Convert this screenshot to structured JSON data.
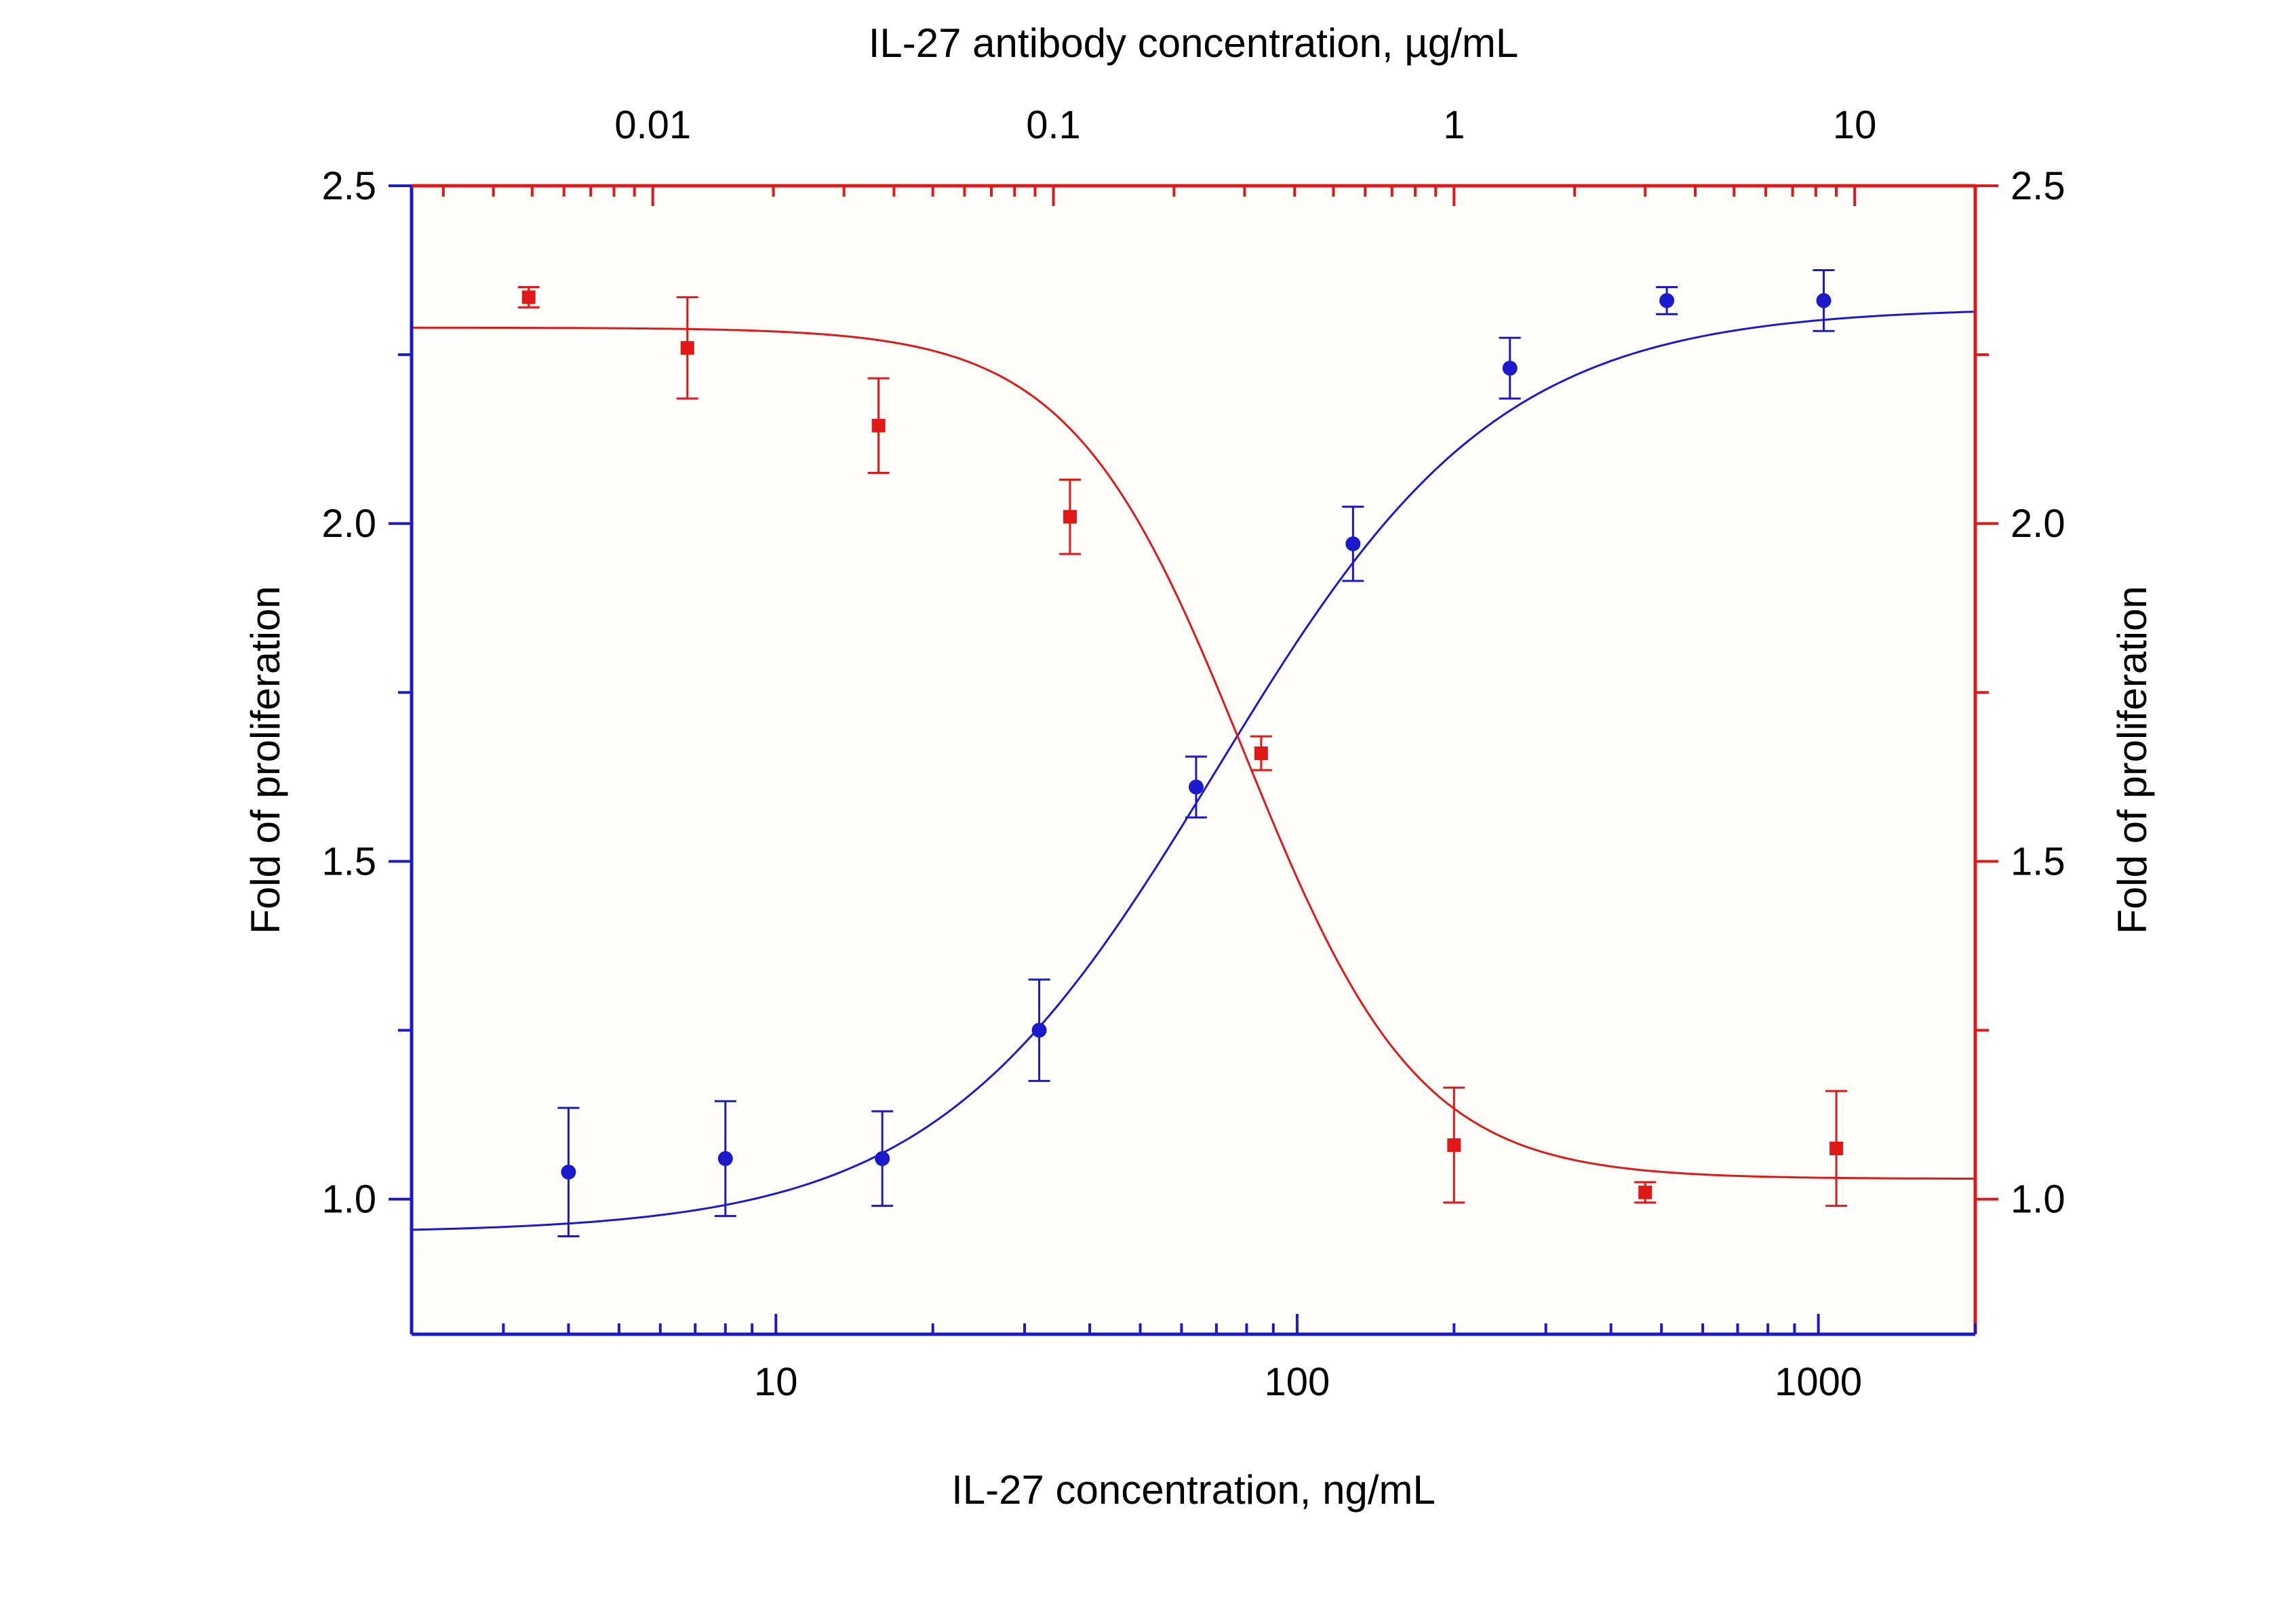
{
  "chart_data": {
    "type": "scatter",
    "x_bottom": {
      "label": "IL-27 concentration, ng/mL",
      "scale": "log",
      "range": [
        2,
        2000
      ],
      "ticks": [
        10,
        100,
        1000
      ],
      "tick_labels": [
        "10",
        "100",
        "1000"
      ],
      "color": "#1a1acc"
    },
    "x_top": {
      "label": "IL-27 antibody concentration, µg/mL",
      "scale": "log",
      "range": [
        0.0025,
        20
      ],
      "ticks": [
        0.01,
        0.1,
        1,
        10
      ],
      "tick_labels": [
        "0.01",
        "0.1",
        "1",
        "10"
      ],
      "color": "#e01818"
    },
    "y_left": {
      "label": "Fold of proliferation",
      "range": [
        0.8,
        2.5
      ],
      "ticks": [
        1.0,
        1.5,
        2.0,
        2.5
      ],
      "tick_labels": [
        "1.0",
        "1.5",
        "2.0",
        "2.5"
      ],
      "color": "#1a1acc"
    },
    "y_right": {
      "label": "Fold of proliferation",
      "range": [
        0.8,
        2.5
      ],
      "ticks": [
        1.0,
        1.5,
        2.0,
        2.5
      ],
      "tick_labels": [
        "1.0",
        "1.5",
        "2.0",
        "2.5"
      ],
      "color": "#e01818"
    },
    "grid": false,
    "background": "#fffefa",
    "series": [
      {
        "axis": "bottom",
        "color": "#1a1acc",
        "marker": "circle",
        "x": [
          4,
          8,
          16,
          32,
          64,
          128,
          256,
          512,
          1024
        ],
        "y": [
          1.04,
          1.06,
          1.06,
          1.25,
          1.61,
          1.97,
          2.23,
          2.33,
          2.33
        ],
        "yerr": [
          0.095,
          0.085,
          0.07,
          0.075,
          0.045,
          0.055,
          0.045,
          0.02,
          0.045
        ],
        "fit": {
          "type": "4PL",
          "bottom": 0.95,
          "top": 2.32,
          "ec50": 70,
          "hill": 1.6,
          "x_range": [
            2,
            2000
          ]
        }
      },
      {
        "axis": "top",
        "color": "#e01818",
        "marker": "square",
        "x": [
          0.0049,
          0.0122,
          0.0366,
          0.11,
          0.33,
          1.0,
          3.0,
          9.0
        ],
        "y": [
          2.335,
          2.26,
          2.145,
          2.01,
          1.66,
          1.08,
          1.01,
          1.075
        ],
        "yerr": [
          0.015,
          0.075,
          0.07,
          0.055,
          0.025,
          0.085,
          0.015,
          0.085
        ],
        "fit": {
          "type": "4PL",
          "bottom": 1.03,
          "top": 2.29,
          "ec50": 0.3,
          "hill": -2.0,
          "x_range": [
            0.0025,
            20
          ]
        }
      }
    ]
  }
}
